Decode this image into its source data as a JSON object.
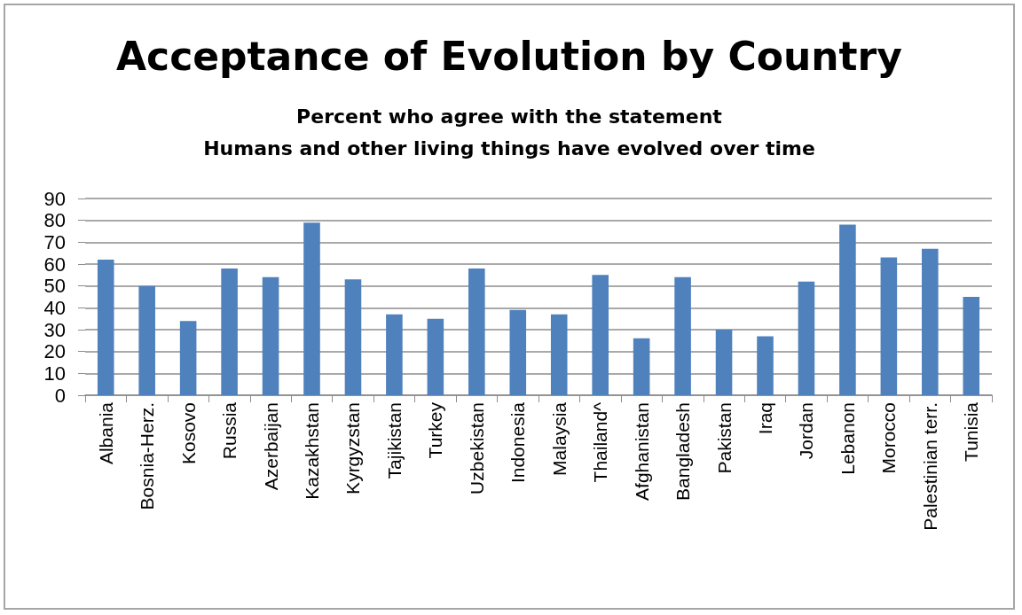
{
  "chart_data": {
    "type": "bar",
    "title": "Acceptance of Evolution by Country",
    "subtitle": "Percent who agree with the statement\nHumans and other living things have evolved over time",
    "categories": [
      "Albania",
      "Bosnia-Herz.",
      "Kosovo",
      "Russia",
      "Azerbaijan",
      "Kazakhstan",
      "Kyrgyzstan",
      "Tajikistan",
      "Turkey",
      "Uzbekistan",
      "Indonesia",
      "Malaysia",
      "Thailand^",
      "Afghanistan",
      "Bangladesh",
      "Pakistan",
      "Iraq",
      "Jordan",
      "Lebanon",
      "Morocco",
      "Palestinian terr.",
      "Tunisia"
    ],
    "values": [
      62,
      50,
      34,
      58,
      54,
      79,
      53,
      37,
      35,
      58,
      39,
      37,
      55,
      26,
      54,
      30,
      27,
      52,
      78,
      63,
      67,
      45
    ],
    "color": "#4f81bd",
    "ylim": [
      0,
      90
    ],
    "yticks": [
      0,
      10,
      20,
      30,
      40,
      50,
      60,
      70,
      80,
      90
    ],
    "grid": "y"
  }
}
